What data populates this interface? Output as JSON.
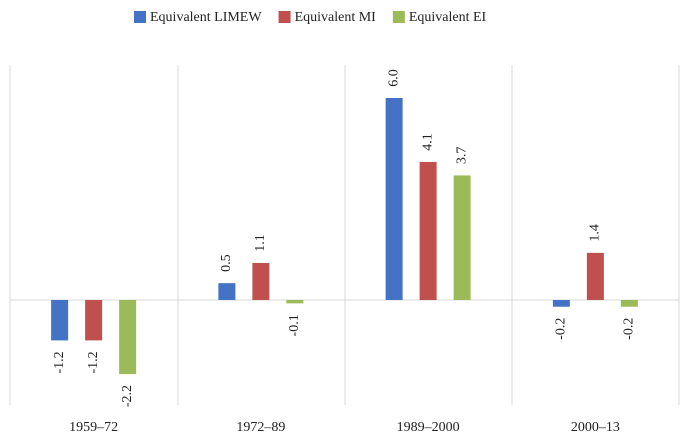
{
  "chart_data": {
    "type": "bar",
    "categories": [
      "1959–72",
      "1972–89",
      "1989–2000",
      "2000–13"
    ],
    "series": [
      {
        "name": "Equivalent LIMEW",
        "color": "#4472c4",
        "values": [
          -1.2,
          0.5,
          6.0,
          -0.2
        ],
        "value_labels": [
          "-1.2",
          "0.5",
          "6.0",
          "-0.2"
        ]
      },
      {
        "name": "Equivalent MI",
        "color": "#c0504d",
        "values": [
          -1.2,
          1.1,
          4.1,
          1.4
        ],
        "value_labels": [
          "-1.2",
          "1.1",
          "4.1",
          "1.4"
        ]
      },
      {
        "name": "Equivalent EI",
        "color": "#9bbb59",
        "values": [
          -2.2,
          -0.1,
          3.7,
          -0.2
        ],
        "value_labels": [
          "-2.2",
          "-0.1",
          "3.7",
          "-0.2"
        ]
      }
    ]
  }
}
